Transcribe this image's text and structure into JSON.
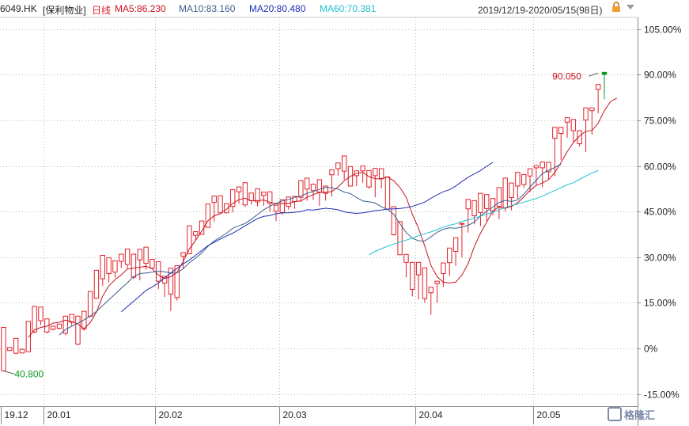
{
  "header": {
    "ticker": "6049.HK",
    "name": "[保利物业]",
    "period": "日线",
    "ma5": "MA5:86.230",
    "ma10": "MA10:83.160",
    "ma20": "MA20:80.480",
    "ma60": "MA60:70.381",
    "range": "2019/12/19-2020/05/15(98日)"
  },
  "colors": {
    "up": "#e0222a",
    "down": "#0a9a22",
    "ma5": "#c8141e",
    "ma10": "#3c5f8c",
    "ma20": "#1e2fb4",
    "ma60": "#1fc3cf",
    "grid": "#b8b8b8"
  },
  "icons": {
    "refresh": "lock-icon",
    "dropdown": "chevron-down-icon"
  },
  "watermark": {
    "text": "格隆汇"
  },
  "chart_data": {
    "type": "candlestick",
    "y_axis": {
      "ticks": [
        "105.00%",
        "90.00%",
        "75.00%",
        "60.00%",
        "45.00%",
        "30.00%",
        "15.00%",
        "0%",
        "-15.00%"
      ],
      "tick_values": [
        105,
        90,
        75,
        60,
        45,
        30,
        15,
        0,
        -15
      ],
      "ylim": [
        -18,
        108
      ]
    },
    "x_axis": {
      "labels": [
        "19.12",
        "20.01",
        "20.02",
        "20.03",
        "20.04",
        "20.05"
      ],
      "label_index": [
        0,
        7,
        25,
        45,
        67,
        86
      ]
    },
    "annotations": {
      "high": {
        "value": 90.05,
        "text": "90.050",
        "index": 96
      },
      "low": {
        "value": 40.8,
        "text": "40.800",
        "index": 0
      }
    },
    "candles": [
      [
        0,
        3.6,
        -7.4,
        6.9,
        -0.8
      ],
      [
        -0.3,
        -0.4,
        -0.7,
        0.3,
        -0.6
      ],
      [
        -0.6,
        2.6,
        -1.6,
        3.3,
        -1.9
      ],
      [
        -1.2,
        -1.5,
        -1.5,
        -0.3,
        -1.7
      ],
      [
        -0.3,
        7.2,
        -1.1,
        8.9,
        -1.1
      ],
      [
        7.1,
        12.3,
        5.4,
        13.8,
        5.0
      ],
      [
        12.6,
        8.7,
        9.1,
        13.6,
        7.7
      ],
      [
        8.5,
        6.5,
        5.4,
        9.7,
        5.0
      ],
      [
        6.9,
        7.2,
        6.3,
        7.3,
        5.9
      ],
      [
        7.6,
        7.0,
        6.6,
        8.0,
        6.2
      ],
      [
        6.4,
        10.1,
        5.0,
        10.6,
        4.3
      ],
      [
        10.5,
        8.0,
        8.6,
        11.2,
        7.5
      ],
      [
        7.8,
        6.9,
        1.4,
        10.6,
        1.0
      ],
      [
        7.7,
        11.5,
        6.4,
        12.2,
        5.8
      ],
      [
        11.0,
        17.3,
        10.6,
        18.7,
        10.4
      ],
      [
        17.4,
        24.8,
        16.5,
        25.7,
        16.3
      ],
      [
        25.3,
        28.3,
        22.9,
        30.6,
        20.6
      ],
      [
        29.4,
        27.0,
        24.6,
        29.8,
        21.8
      ],
      [
        26.7,
        28.0,
        25.1,
        28.8,
        23.3
      ],
      [
        28.7,
        30.9,
        28.6,
        31.0,
        26.4
      ],
      [
        30.6,
        30.1,
        27.6,
        32.7,
        26.2
      ],
      [
        30.8,
        26.3,
        23.4,
        31.0,
        22.8
      ],
      [
        24.3,
        30.0,
        29.1,
        32.6,
        22.4
      ],
      [
        29.9,
        29.1,
        28.0,
        33.3,
        25.9
      ],
      [
        28.7,
        27.0,
        26.4,
        29.3,
        26.3
      ],
      [
        28.2,
        24.3,
        22.1,
        28.5,
        19.5
      ],
      [
        23.3,
        21.9,
        21.5,
        23.7,
        16.9
      ],
      [
        21.5,
        23.9,
        17.9,
        26.4,
        12.3
      ],
      [
        22.6,
        26.7,
        16.7,
        27.2,
        15.7
      ],
      [
        26.1,
        31.5,
        30.3,
        31.5,
        26.0
      ],
      [
        31.8,
        38.1,
        31.1,
        40.3,
        31.1
      ],
      [
        38.0,
        35.9,
        37.2,
        38.4,
        35.5
      ],
      [
        37.4,
        40.9,
        37.5,
        41.9,
        37.5
      ],
      [
        40.8,
        46.8,
        39.8,
        47.5,
        39.8
      ],
      [
        46.1,
        49.4,
        48.0,
        50.1,
        41.7
      ],
      [
        49.4,
        47.7,
        44.6,
        50.2,
        44.6
      ],
      [
        45.4,
        43.5,
        44.6,
        47.6,
        44.4
      ],
      [
        44.9,
        49.1,
        46.7,
        52.2,
        44.7
      ],
      [
        48.9,
        52.7,
        51.5,
        53.1,
        47.6
      ],
      [
        52.3,
        53.1,
        47.2,
        54.5,
        46.5
      ],
      [
        47.8,
        50.2,
        48.6,
        51.1,
        47.3
      ],
      [
        49.5,
        47.3,
        48.2,
        52.5,
        46.7
      ],
      [
        48.4,
        48.9,
        50.3,
        51.4,
        46.9
      ],
      [
        50.9,
        51.5,
        47.7,
        51.5,
        44.9
      ],
      [
        47.5,
        43.8,
        45.1,
        47.1,
        41.9
      ],
      [
        45.4,
        47.7,
        44.7,
        48.9,
        43.9
      ],
      [
        45.1,
        48.3,
        46.7,
        49.8,
        45.7
      ],
      [
        47.0,
        50.0,
        48.3,
        50.0,
        45.9
      ],
      [
        48.3,
        54.1,
        49.7,
        55.2,
        48.1
      ],
      [
        49.9,
        53.9,
        52.4,
        56.0,
        48.6
      ],
      [
        52.7,
        51.7,
        51.9,
        54.0,
        48.8
      ],
      [
        52.0,
        53.1,
        51.4,
        55.5,
        46.9
      ],
      [
        51.4,
        52.1,
        51.0,
        53.4,
        48.6
      ],
      [
        51.8,
        52.7,
        57.1,
        58.7,
        50.0
      ],
      [
        56.9,
        58.1,
        59.1,
        61.0,
        56.8
      ],
      [
        59.5,
        60.6,
        58.3,
        63.3,
        55.5
      ],
      [
        58.2,
        54.3,
        53.4,
        59.8,
        53.2
      ],
      [
        53.9,
        57.9,
        56.8,
        58.4,
        53.4
      ],
      [
        56.5,
        57.4,
        58.4,
        60.0,
        54.5
      ],
      [
        58.3,
        54.6,
        53.1,
        58.5,
        52.5
      ],
      [
        53.3,
        55.2,
        56.8,
        59.2,
        49.7
      ],
      [
        57.0,
        57.4,
        55.9,
        59.1,
        52.6
      ],
      [
        56.3,
        50.0,
        45.8,
        56.4,
        45.8
      ],
      [
        45.1,
        38.3,
        37.4,
        46.6,
        37.1
      ],
      [
        37.5,
        38.0,
        30.8,
        41.7,
        30.7
      ],
      [
        30.1,
        24.2,
        28.3,
        30.9,
        23.4
      ],
      [
        27.7,
        27.8,
        19.4,
        28.3,
        17.1
      ],
      [
        20.4,
        20.6,
        24.2,
        28.3,
        16.1
      ],
      [
        24.0,
        24.2,
        16.4,
        26.5,
        15.1
      ],
      [
        16.6,
        18.6,
        18.3,
        20.1,
        11.1
      ],
      [
        18.0,
        21.4,
        21.3,
        22.1,
        15.0
      ],
      [
        21.4,
        20.3,
        24.6,
        28.1,
        20.2
      ],
      [
        24.3,
        30.3,
        28.2,
        33.0,
        23.8
      ],
      [
        28.0,
        26.7,
        31.9,
        36.4,
        27.1
      ],
      [
        31.8,
        36.7,
        41.0,
        41.1,
        29.9
      ],
      [
        40.8,
        47.5,
        45.9,
        49.0,
        38.1
      ],
      [
        46.2,
        42.6,
        43.6,
        48.6,
        40.8
      ],
      [
        43.2,
        48.5,
        44.7,
        51.0,
        40.2
      ],
      [
        44.8,
        45.3,
        46.0,
        50.6,
        42.0
      ],
      [
        45.7,
        47.1,
        45.1,
        49.3,
        43.7
      ],
      [
        45.8,
        52.8,
        46.7,
        52.9,
        42.5
      ],
      [
        46.7,
        55.1,
        46.3,
        56.0,
        45.0
      ],
      [
        46.8,
        50.8,
        49.6,
        54.4,
        45.4
      ],
      [
        49.6,
        54.7,
        53.4,
        57.9,
        49.2
      ],
      [
        53.4,
        55.9,
        53.9,
        57.2,
        52.8
      ],
      [
        54.1,
        57.1,
        56.7,
        59.1,
        51.4
      ],
      [
        56.3,
        58.2,
        59.4,
        60.1,
        53.8
      ],
      [
        59.1,
        55.8,
        59.4,
        61.3,
        53.0
      ],
      [
        59.3,
        59.8,
        58.1,
        61.2,
        55.7
      ],
      [
        58.2,
        71.6,
        69.1,
        72.7,
        56.6
      ],
      [
        69.1,
        71.8,
        70.7,
        72.7,
        61.9
      ],
      [
        71.0,
        70.2,
        74.4,
        75.9,
        69.3
      ],
      [
        74.5,
        69.2,
        71.6,
        75.3,
        67.7
      ],
      [
        71.7,
        70.7,
        67.3,
        71.6,
        66.4
      ],
      [
        67.2,
        70.8,
        75.1,
        79.1,
        64.6
      ],
      [
        74.8,
        77.6,
        78.2,
        79.1,
        70.3
      ],
      [
        78.0,
        81.7,
        85.2,
        86.8,
        77.3
      ],
      [
        85.1,
        90.0,
        90.8,
        90.1,
        82.0
      ]
    ],
    "series": [
      {
        "name": "MA5",
        "start": 4,
        "values": [
          3.6,
          6.1,
          6.9,
          7.3,
          8.3,
          8.6,
          9.3,
          8.8,
          8.0,
          6.5,
          8.5,
          12.0,
          17.2,
          20.6,
          22.6,
          24.2,
          26.1,
          26.4,
          26.7,
          27.0,
          26.2,
          24.1,
          23.0,
          23.6,
          25.0,
          28.6,
          32.7,
          35.5,
          38.6,
          42.0,
          43.6,
          44.3,
          45.8,
          47.7,
          48.9,
          49.4,
          48.5,
          48.6,
          48.8,
          48.1,
          47.5,
          47.7,
          47.6,
          48.3,
          48.5,
          49.7,
          50.6,
          51.3,
          51.3,
          51.6,
          53.1,
          55.1,
          56.6,
          57.6,
          57.9,
          56.5,
          55.8,
          55.7,
          56.4,
          55.1,
          52.9,
          49.7,
          44.1,
          39.5,
          33.7,
          27.3,
          23.6,
          21.8,
          21.5,
          21.8,
          24.1,
          27.9,
          33.5,
          37.9,
          41.5,
          45.3,
          46.5,
          46.1,
          46.7,
          47.9,
          49.8,
          52.0,
          53.6,
          54.4,
          55.5,
          57.9,
          61.1,
          64.7,
          67.7,
          69.9,
          71.4,
          71.7,
          74.1,
          78.2,
          81.2,
          82.3
        ]
      },
      {
        "name": "MA10",
        "start": 9,
        "values": [
          4.4,
          6.2,
          7.3,
          8.3,
          9.4,
          10.6,
          12.2,
          14.1,
          16.0,
          17.8,
          19.8,
          21.6,
          23.7,
          24.6,
          24.8,
          25.1,
          25.4,
          25.2,
          24.8,
          24.8,
          26.2,
          28.2,
          29.7,
          31.4,
          33.6,
          35.3,
          36.6,
          37.9,
          39.5,
          40.3,
          41.1,
          42.5,
          44.0,
          45.6,
          46.8,
          47.7,
          48.5,
          49.0,
          49.7,
          50.1,
          51.0,
          51.6,
          52.3,
          53.0,
          52.8,
          52.4,
          51.4,
          50.9,
          49.6,
          48.5,
          48.2,
          47.8,
          46.6,
          45.7,
          44.1,
          41.0,
          38.1,
          36.2,
          35.4,
          35.3,
          36.7,
          38.2,
          39.2,
          39.7,
          39.5,
          39.9,
          40.5,
          41.5,
          43.6,
          45.1,
          46.5,
          48.0,
          48.7,
          48.3,
          48.8,
          50.7,
          53.1,
          55.3,
          57.5,
          58.6,
          59.5,
          60.6
        ]
      },
      {
        "name": "MA20",
        "start": 19,
        "values": [
          12.0,
          13.8,
          15.5,
          17.3,
          19.1,
          20.2,
          21.5,
          23.2,
          24.8,
          26.3,
          27.8,
          29.1,
          30.6,
          32.2,
          33.8,
          34.9,
          36.0,
          37.0,
          37.9,
          39.1,
          40.3,
          41.5,
          42.7,
          43.4,
          43.7,
          44.3,
          44.6,
          44.6,
          44.8,
          45.0,
          45.6,
          45.5,
          45.8,
          46.1,
          45.9,
          45.6,
          44.9,
          44.6,
          44.4,
          44.6,
          44.9,
          45.3,
          45.5,
          45.8,
          45.9,
          46.0,
          46.3,
          46.7,
          47.4,
          48.1,
          49.4,
          50.5,
          51.5,
          52.2,
          53.4,
          54.9,
          56.3,
          57.4,
          58.5,
          59.9,
          61.2
        ]
      },
      {
        "name": "MA60",
        "start": 59,
        "values": [
          30.8,
          31.9,
          32.8,
          33.6,
          34.3,
          35.0,
          35.6,
          36.3,
          37.0,
          37.7,
          38.3,
          39.1,
          39.9,
          40.5,
          41.0,
          41.7,
          42.3,
          42.9,
          43.5,
          44.2,
          44.8,
          45.6,
          46.3,
          47.0,
          47.5,
          48.1,
          48.7,
          49.3,
          50.1,
          51.0,
          51.9,
          52.9,
          53.8,
          54.5,
          55.6,
          56.7,
          57.7,
          58.5
        ]
      }
    ]
  }
}
